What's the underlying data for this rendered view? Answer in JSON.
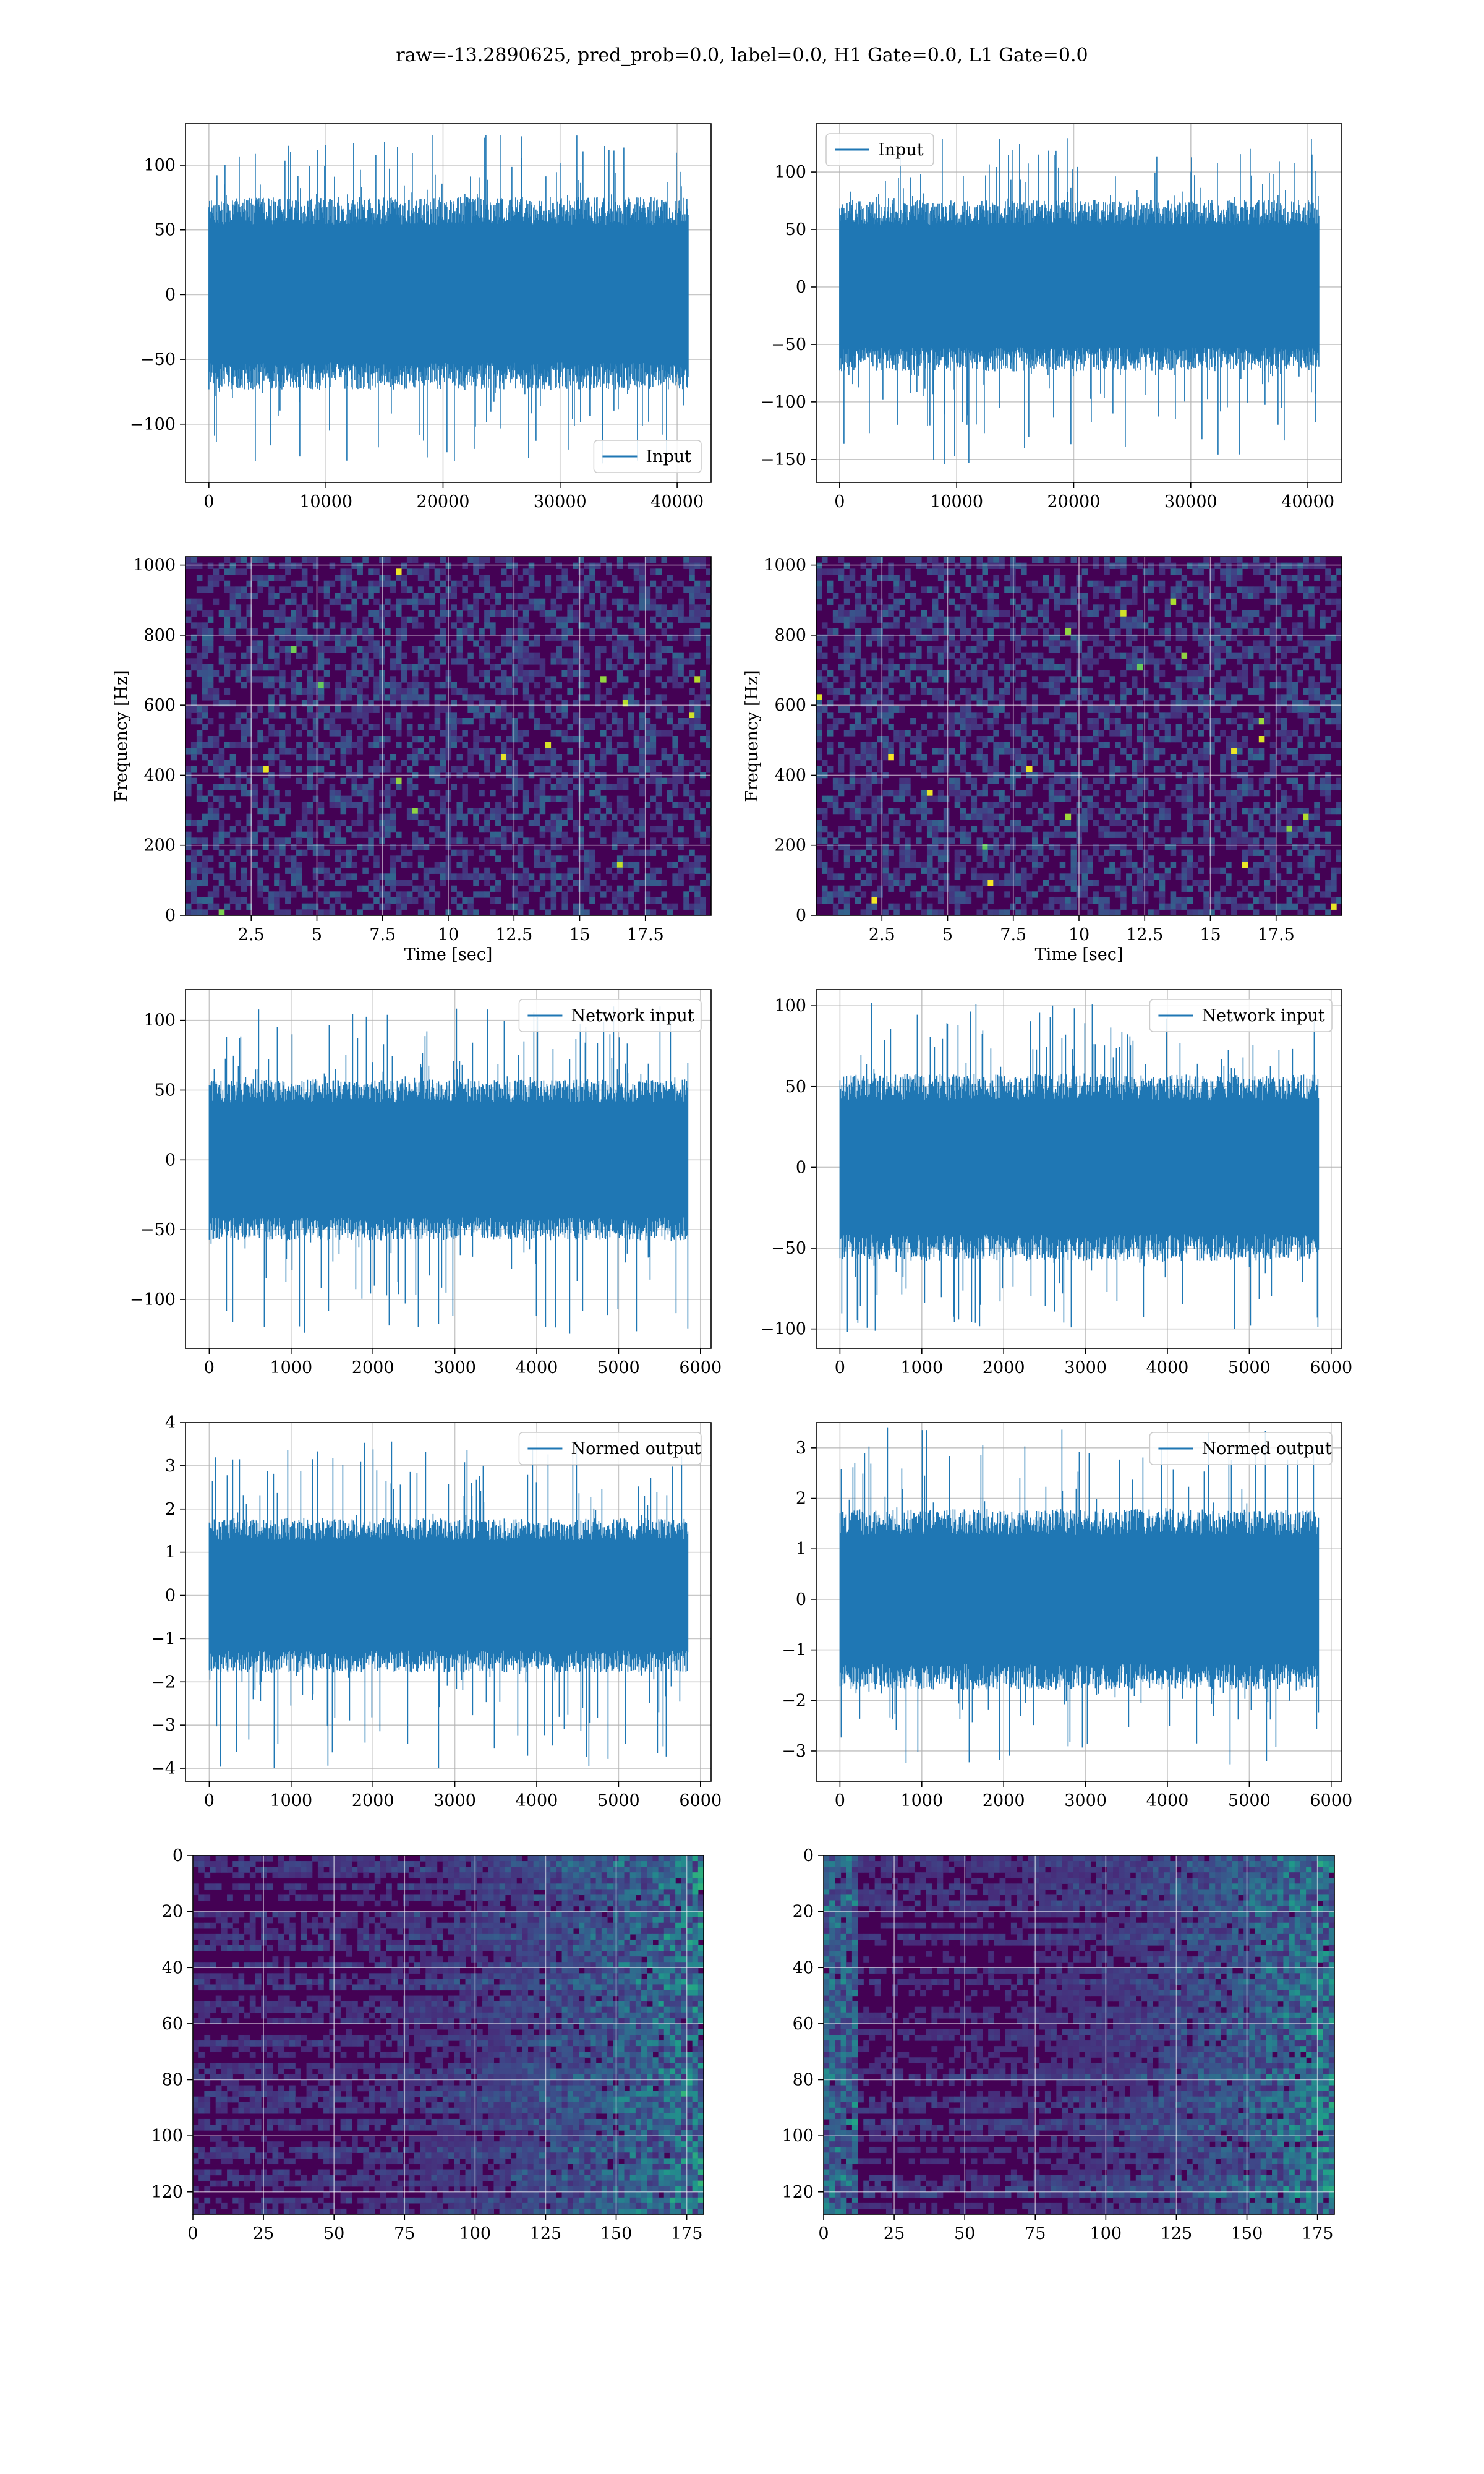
{
  "suptitle": "raw=-13.2890625, pred_prob=0.0, label=0.0, H1 Gate=0.0, L1 Gate=0.0",
  "colors": {
    "line": "#1f77b4",
    "grid": "#b0b0b0",
    "viridis_low": "#440154",
    "viridis_high": "#fde725"
  },
  "chart_data": [
    {
      "id": "input-h1",
      "type": "line",
      "legend": "Input",
      "legend_loc": "lower-right",
      "xlim": [
        -2000,
        42900
      ],
      "ylim": [
        -145,
        132
      ],
      "xticks": [
        0,
        10000,
        20000,
        30000,
        40000
      ],
      "yticks": [
        -100,
        -50,
        0,
        50,
        100
      ],
      "signal": {
        "n": 40960,
        "env_max": 125,
        "env_min": -135,
        "core_max": 72,
        "core_min": -70
      },
      "xlabel": "",
      "ylabel": "",
      "grid": true
    },
    {
      "id": "input-l1",
      "type": "line",
      "legend": "Input",
      "legend_loc": "upper-left",
      "xlim": [
        -2000,
        42900
      ],
      "ylim": [
        -170,
        142
      ],
      "xticks": [
        0,
        10000,
        20000,
        30000,
        40000
      ],
      "yticks": [
        -150,
        -100,
        -50,
        0,
        50,
        100
      ],
      "signal": {
        "n": 40960,
        "env_max": 130,
        "env_min": -155,
        "core_max": 72,
        "core_min": -70
      },
      "xlabel": "",
      "ylabel": "",
      "grid": true
    },
    {
      "id": "spectrogram-h1",
      "type": "heatmap",
      "xlim": [
        0,
        20
      ],
      "ylim": [
        0,
        1024
      ],
      "xticks": [
        2.5,
        5.0,
        7.5,
        10.0,
        12.5,
        15.0,
        17.5
      ],
      "yticks": [
        0,
        200,
        400,
        600,
        800,
        1000
      ],
      "xlabel": "Time [sec]",
      "ylabel": "Frequency [Hz]",
      "grid": true,
      "colormap": "viridis"
    },
    {
      "id": "spectrogram-l1",
      "type": "heatmap",
      "xlim": [
        0,
        20
      ],
      "ylim": [
        0,
        1024
      ],
      "xticks": [
        2.5,
        5.0,
        7.5,
        10.0,
        12.5,
        15.0,
        17.5
      ],
      "yticks": [
        0,
        200,
        400,
        600,
        800,
        1000
      ],
      "xlabel": "Time [sec]",
      "ylabel": "Frequency [Hz]",
      "grid": true,
      "colormap": "viridis"
    },
    {
      "id": "network-input-h1",
      "type": "line",
      "legend": "Network input",
      "legend_loc": "upper-right",
      "xlim": [
        -290,
        6130
      ],
      "ylim": [
        -135,
        122
      ],
      "xticks": [
        0,
        1000,
        2000,
        3000,
        4000,
        5000,
        6000
      ],
      "yticks": [
        -100,
        -50,
        0,
        50,
        100
      ],
      "signal": {
        "n": 5850,
        "env_max": 110,
        "env_min": -125,
        "core_max": 55,
        "core_min": -55
      },
      "xlabel": "",
      "ylabel": "",
      "grid": true
    },
    {
      "id": "network-input-l1",
      "type": "line",
      "legend": "Network input",
      "legend_loc": "upper-right",
      "xlim": [
        -290,
        6130
      ],
      "ylim": [
        -112,
        110
      ],
      "xticks": [
        0,
        1000,
        2000,
        3000,
        4000,
        5000,
        6000
      ],
      "yticks": [
        -100,
        -50,
        0,
        50,
        100
      ],
      "signal": {
        "n": 5850,
        "env_max": 102,
        "env_min": -103,
        "core_max": 55,
        "core_min": -55
      },
      "xlabel": "",
      "ylabel": "",
      "grid": true
    },
    {
      "id": "normed-output-h1",
      "type": "line",
      "legend": "Normed output",
      "legend_loc": "upper-right",
      "xlim": [
        -290,
        6130
      ],
      "ylim": [
        -4.3,
        4.0
      ],
      "xticks": [
        0,
        1000,
        2000,
        3000,
        4000,
        5000,
        6000
      ],
      "yticks": [
        -4,
        -3,
        -2,
        -1,
        0,
        1,
        2,
        3,
        4
      ],
      "signal": {
        "n": 5850,
        "env_max": 3.6,
        "env_min": -4.0,
        "core_max": 1.7,
        "core_min": -1.7
      },
      "xlabel": "",
      "ylabel": "",
      "grid": true
    },
    {
      "id": "normed-output-l1",
      "type": "line",
      "legend": "Normed output",
      "legend_loc": "upper-right",
      "xlim": [
        -290,
        6130
      ],
      "ylim": [
        -3.6,
        3.5
      ],
      "xticks": [
        0,
        1000,
        2000,
        3000,
        4000,
        5000,
        6000
      ],
      "yticks": [
        -3,
        -2,
        -1,
        0,
        1,
        2,
        3
      ],
      "signal": {
        "n": 5850,
        "env_max": 3.4,
        "env_min": -3.4,
        "core_max": 1.7,
        "core_min": -1.7
      },
      "xlabel": "",
      "ylabel": "",
      "grid": true
    },
    {
      "id": "feature-map-h1",
      "type": "heatmap",
      "xlim": [
        0,
        181
      ],
      "ylim": [
        128,
        0
      ],
      "xticks": [
        0,
        25,
        50,
        75,
        100,
        125,
        150,
        175
      ],
      "yticks": [
        0,
        20,
        40,
        60,
        80,
        100,
        120
      ],
      "xlabel": "",
      "ylabel": "",
      "grid": true,
      "colormap": "viridis"
    },
    {
      "id": "feature-map-l1",
      "type": "heatmap",
      "xlim": [
        0,
        181
      ],
      "ylim": [
        128,
        0
      ],
      "xticks": [
        0,
        25,
        50,
        75,
        100,
        125,
        150,
        175
      ],
      "yticks": [
        0,
        20,
        40,
        60,
        80,
        100,
        120
      ],
      "xlabel": "",
      "ylabel": "",
      "grid": true,
      "colormap": "viridis"
    }
  ]
}
